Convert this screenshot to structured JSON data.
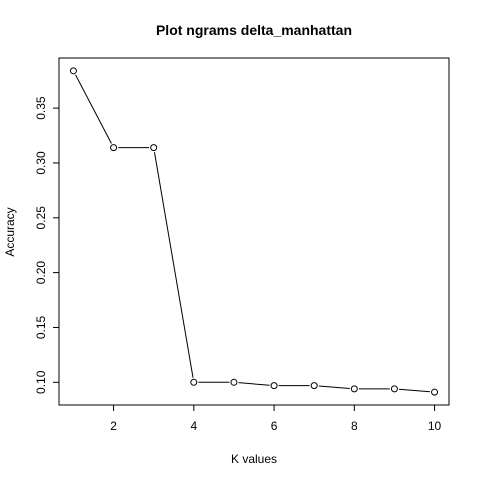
{
  "chart_data": {
    "type": "line",
    "title": "Plot ngrams delta_manhattan",
    "xlabel": "K values",
    "ylabel": "Accuracy",
    "x": [
      1,
      2,
      3,
      4,
      5,
      6,
      7,
      8,
      9,
      10
    ],
    "series": [
      {
        "values": [
          0.384,
          0.314,
          0.314,
          0.1,
          0.1,
          0.097,
          0.097,
          0.094,
          0.094,
          0.091
        ]
      }
    ],
    "xlim": [
      0.64,
      10.36
    ],
    "ylim": [
      0.0793,
      0.3957
    ],
    "xticks": [
      2,
      4,
      6,
      8,
      10
    ],
    "xtick_labels": [
      "2",
      "4",
      "6",
      "8",
      "10"
    ],
    "yticks": [
      0.1,
      0.15,
      0.2,
      0.25,
      0.3,
      0.35
    ],
    "ytick_labels": [
      "0.10",
      "0.15",
      "0.20",
      "0.25",
      "0.30",
      "0.35"
    ],
    "markers": "open-circle",
    "grid": false,
    "legend": "none",
    "colors": {
      "line": "#000000",
      "marker_stroke": "#000000",
      "marker_fill": "#ffffff",
      "axis": "#000000",
      "background": "#ffffff"
    }
  }
}
